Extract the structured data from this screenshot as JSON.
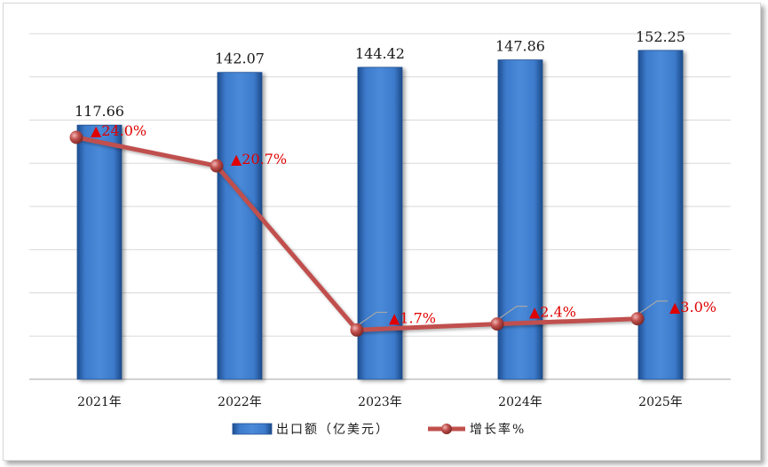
{
  "chart_data": {
    "type": "bar",
    "categories": [
      "2021年",
      "2022年",
      "2023年",
      "2024年",
      "2025年"
    ],
    "series": [
      {
        "name": "出口额（亿美元）",
        "type": "bar",
        "values": [
          117.66,
          142.07,
          144.42,
          147.86,
          152.25
        ],
        "labels": [
          "117.66",
          "142.07",
          "144.42",
          "147.86",
          "152.25"
        ],
        "color": "#3a78c8"
      },
      {
        "name": "增长率%",
        "type": "line",
        "values": [
          24.0,
          20.7,
          1.7,
          2.4,
          3.0
        ],
        "labels": [
          "▲24.0%",
          "▲20.7%",
          "▲1.7%",
          "▲2.4%",
          "▲3.0%"
        ],
        "color": "#c0504d",
        "label_color": "#e00000"
      }
    ],
    "ylim": [
      0,
      160
    ],
    "y2lim": [
      -4,
      36
    ],
    "grid": true,
    "legend": "bottom"
  }
}
